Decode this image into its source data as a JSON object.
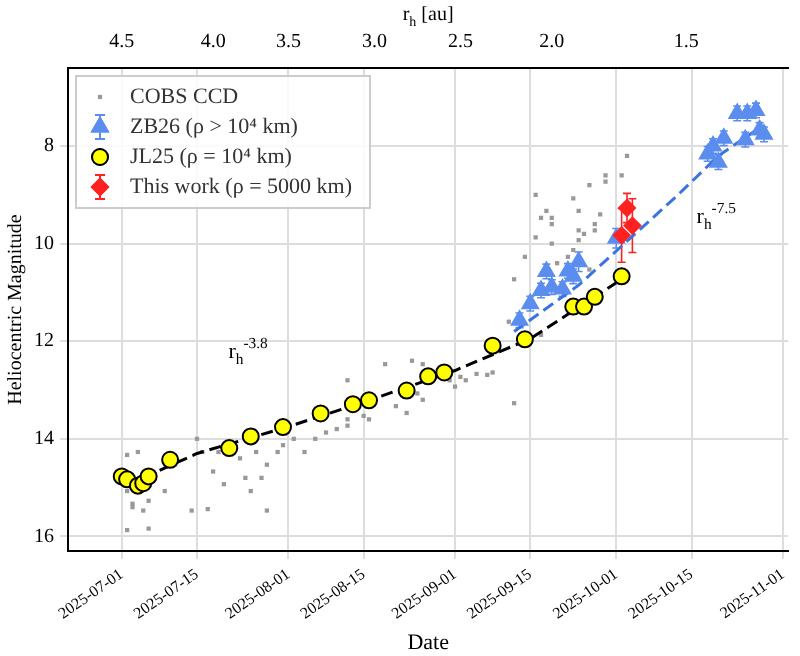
{
  "chart_data": {
    "type": "scatter",
    "xlabel": "Date",
    "ylabel": "Heliocentric Magnitude",
    "x2label": "r$_{h}$ [au]",
    "xlim": [
      "2025-06-21",
      "2025-11-02"
    ],
    "xticks": [
      "2025-07-01",
      "2025-07-15",
      "2025-08-01",
      "2025-08-15",
      "2025-09-01",
      "2025-09-15",
      "2025-10-01",
      "2025-10-15",
      "2025-11-01"
    ],
    "x2lim": [
      "2025-06-21",
      "2025-11-02"
    ],
    "x2ticks": [
      {
        "value": "2025-07-01",
        "label": "4.5"
      },
      {
        "value": "2025-07-18",
        "label": "4.0"
      },
      {
        "value": "2025-08-01",
        "label": "3.5"
      },
      {
        "value": "2025-08-17",
        "label": "3.0"
      },
      {
        "value": "2025-09-02",
        "label": "2.5"
      },
      {
        "value": "2025-09-19",
        "label": "2.0"
      },
      {
        "value": "2025-10-14",
        "label": "1.5"
      }
    ],
    "ylim": [
      16.3,
      6.4
    ],
    "yticks": [
      8,
      10,
      12,
      14,
      16
    ],
    "grid": true,
    "legend": "top left",
    "annotations": [
      "r$_{h}$$^{-3.8}$",
      "r$_{h}$$^{-7.5}$"
    ],
    "series": [
      {
        "name": "COBS CCD",
        "color": "#999999",
        "marker": "square",
        "x": [
          "2025-07-02",
          "2025-07-04",
          "2025-07-03",
          "2025-07-02",
          "2025-07-03",
          "2025-07-02",
          "2025-07-06",
          "2025-07-05",
          "2025-07-06",
          "2025-07-09",
          "2025-07-14",
          "2025-07-15",
          "2025-07-16",
          "2025-07-17",
          "2025-07-18",
          "2025-07-19",
          "2025-07-20",
          "2025-07-23",
          "2025-07-24",
          "2025-07-25",
          "2025-07-26",
          "2025-07-27",
          "2025-07-28",
          "2025-07-28",
          "2025-07-30",
          "2025-07-31",
          "2025-08-02",
          "2025-08-04",
          "2025-08-06",
          "2025-08-08",
          "2025-08-10",
          "2025-08-12",
          "2025-08-12",
          "2025-08-12",
          "2025-08-15",
          "2025-08-16",
          "2025-08-19",
          "2025-08-21",
          "2025-08-23",
          "2025-08-24",
          "2025-08-25",
          "2025-08-26",
          "2025-08-26",
          "2025-08-31",
          "2025-09-02",
          "2025-09-03",
          "2025-09-01",
          "2025-09-05",
          "2025-09-07",
          "2025-09-08",
          "2025-09-09",
          "2025-09-12",
          "2025-09-14",
          "2025-09-16",
          "2025-09-11",
          "2025-09-12",
          "2025-09-17",
          "2025-09-18",
          "2025-09-19",
          "2025-09-19",
          "2025-09-20",
          "2025-09-22",
          "2025-09-23",
          "2025-09-24",
          "2025-09-24",
          "2025-09-25",
          "2025-09-26",
          "2025-09-27",
          "2025-09-27",
          "2025-09-28",
          "2025-09-16",
          "2025-09-17",
          "2025-09-19",
          "2025-09-23",
          "2025-09-24",
          "2025-09-26",
          "2025-09-29",
          "2025-09-29",
          "2025-10-02",
          "2025-10-03"
        ],
        "values": [
          14.33,
          14.27,
          15.4,
          15.07,
          15.33,
          15.87,
          15.84,
          15.47,
          15.27,
          15.07,
          15.47,
          14.0,
          14.27,
          15.44,
          14.67,
          14.27,
          14.93,
          14.4,
          14.8,
          15.07,
          14.27,
          14.8,
          15.47,
          14.53,
          14.27,
          14.13,
          14.0,
          14.27,
          14.0,
          13.87,
          13.8,
          13.6,
          12.8,
          13.73,
          13.53,
          13.6,
          12.47,
          13.33,
          13.47,
          12.4,
          13.07,
          13.2,
          12.47,
          12.8,
          12.73,
          12.8,
          12.93,
          12.67,
          12.69,
          12.64,
          12.2,
          13.27,
          10.27,
          9.87,
          11.6,
          10.73,
          11.87,
          9.33,
          9.47,
          10.0,
          10.4,
          10.27,
          10.13,
          9.93,
          9.73,
          9.8,
          10.53,
          9.73,
          9.6,
          9.4,
          9.0,
          9.47,
          9.6,
          9.07,
          9.33,
          8.8,
          8.73,
          8.6,
          8.6,
          8.2
        ]
      },
      {
        "type": "line",
        "color": "#000000",
        "marker": "none",
        "line_style": "dashed",
        "x": [
          "2025-07-05",
          "2025-07-15",
          "2025-08-01",
          "2025-08-15",
          "2025-09-01",
          "2025-09-15",
          "2025-10-01"
        ],
        "values": [
          14.8,
          14.3,
          13.75,
          13.25,
          12.6,
          11.95,
          10.8
        ]
      },
      {
        "type": "line",
        "color": "#3c73e0",
        "marker": "none",
        "line_style": "dashed",
        "x": [
          "2025-09-12",
          "2025-09-24",
          "2025-10-03",
          "2025-10-12",
          "2025-10-20",
          "2025-10-28"
        ],
        "values": [
          11.8,
          10.85,
          9.95,
          9.05,
          8.2,
          7.6
        ]
      },
      {
        "name": "ZB26 (ρ > 10⁴ km)",
        "color": "#5b8def",
        "marker": "triangle",
        "x": [
          "2025-09-13",
          "2025-09-15",
          "2025-09-17",
          "2025-09-18",
          "2025-09-19",
          "2025-09-21",
          "2025-09-22",
          "2025-09-23",
          "2025-09-24",
          "2025-10-01",
          "2025-10-18",
          "2025-10-19",
          "2025-10-20",
          "2025-10-21",
          "2025-10-23T12:00",
          "2025-10-25T00:00",
          "2025-10-25T09:00",
          "2025-10-27T00:00",
          "2025-10-27T16:00",
          "2025-10-28T12:00"
        ],
        "values": [
          11.57,
          11.23,
          10.96,
          10.57,
          10.89,
          10.93,
          10.56,
          10.67,
          10.37,
          9.89,
          8.16,
          8.0,
          8.33,
          7.84,
          7.33,
          7.87,
          7.33,
          7.27,
          7.67,
          7.76
        ],
        "errors": [
          0.15,
          0.15,
          0.15,
          0.15,
          0.15,
          0.15,
          0.15,
          0.15,
          0.2,
          0.2,
          0.15,
          0.15,
          0.15,
          0.15,
          0.15,
          0.15,
          0.15,
          0.15,
          0.15,
          0.15
        ]
      },
      {
        "name": "JL25 (ρ = 10⁴ km)",
        "color": "#ffff00",
        "marker": "circle",
        "x": [
          "2025-07-01",
          "2025-07-02",
          "2025-07-04",
          "2025-07-05",
          "2025-07-06",
          "2025-07-10",
          "2025-07-21",
          "2025-07-25",
          "2025-07-31",
          "2025-08-07",
          "2025-08-13",
          "2025-08-16",
          "2025-08-23",
          "2025-08-27",
          "2025-08-30",
          "2025-09-08",
          "2025-09-14",
          "2025-09-23",
          "2025-09-25",
          "2025-09-27",
          "2025-10-02"
        ],
        "values": [
          14.77,
          14.83,
          14.96,
          14.91,
          14.77,
          14.43,
          14.19,
          13.95,
          13.76,
          13.48,
          13.29,
          13.21,
          13.01,
          12.72,
          12.64,
          12.09,
          11.96,
          11.29,
          11.29,
          11.09,
          10.67
        ]
      },
      {
        "name": "This work (ρ = 5000 km)",
        "color": "#ff2020",
        "marker": "diamond",
        "x": [
          "2025-10-02",
          "2025-10-03",
          "2025-10-04"
        ],
        "values": [
          9.83,
          9.27,
          9.63
        ],
        "errors": [
          0.55,
          0.3,
          0.55
        ]
      }
    ]
  }
}
